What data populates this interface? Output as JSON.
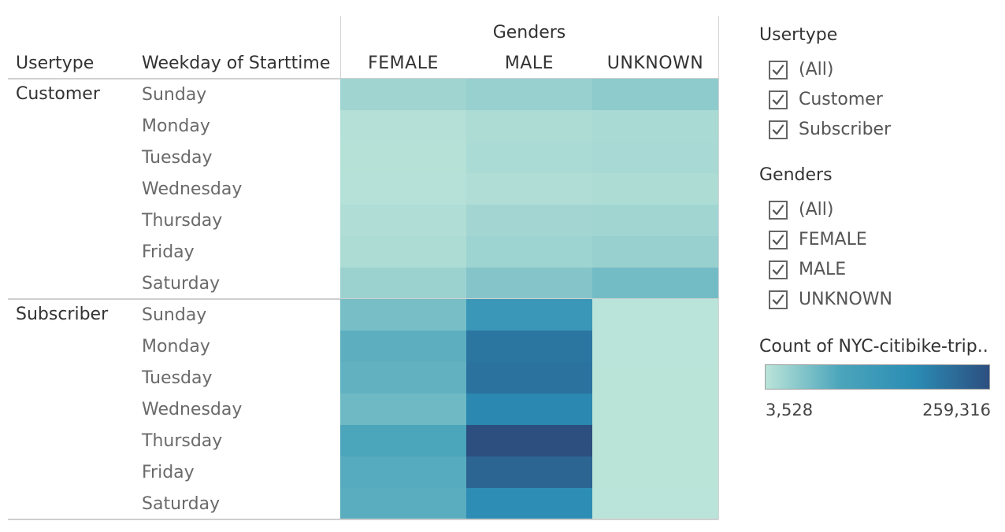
{
  "headers": {
    "usertype": "Usertype",
    "weekday": "Weekday of Starttime",
    "genders": "Genders"
  },
  "chart_data": {
    "type": "heatmap",
    "column_dimension": "Genders",
    "columns": [
      "FEMALE",
      "MALE",
      "UNKNOWN"
    ],
    "row_dimensions": [
      "Usertype",
      "Weekday of Starttime"
    ],
    "groups": [
      {
        "name": "Customer",
        "rows": [
          {
            "day": "Sunday",
            "values": [
              25000,
              30000,
              38000
            ]
          },
          {
            "day": "Monday",
            "values": [
              9000,
              14000,
              17000
            ]
          },
          {
            "day": "Tuesday",
            "values": [
              8000,
              16000,
              18000
            ]
          },
          {
            "day": "Wednesday",
            "values": [
              7000,
              12000,
              14000
            ]
          },
          {
            "day": "Thursday",
            "values": [
              12000,
              22000,
              24000
            ]
          },
          {
            "day": "Friday",
            "values": [
              14000,
              26000,
              30000
            ]
          },
          {
            "day": "Saturday",
            "values": [
              28000,
              45000,
              58000
            ]
          }
        ]
      },
      {
        "name": "Subscriber",
        "rows": [
          {
            "day": "Sunday",
            "values": [
              55000,
              135000,
              4500
            ]
          },
          {
            "day": "Monday",
            "values": [
              75000,
              205000,
              4000
            ]
          },
          {
            "day": "Tuesday",
            "values": [
              72000,
              210000,
              3800
            ]
          },
          {
            "day": "Wednesday",
            "values": [
              62000,
              180000,
              3700
            ]
          },
          {
            "day": "Thursday",
            "values": [
              90000,
              259316,
              3600
            ]
          },
          {
            "day": "Friday",
            "values": [
              80000,
              230000,
              3528
            ]
          },
          {
            "day": "Saturday",
            "values": [
              78000,
              170000,
              4200
            ]
          }
        ]
      }
    ],
    "color_legend": {
      "title": "Count of NYC-citibike-trip..",
      "min_label": "3,528",
      "max_label": "259,316",
      "min": 3528,
      "max": 259316,
      "color_stops": [
        "#bbe4d9",
        "#4ba5bb",
        "#2b8cb4",
        "#2c4f80"
      ]
    }
  },
  "filters": [
    {
      "title": "Usertype",
      "items": [
        {
          "label": "(All)",
          "checked": true
        },
        {
          "label": "Customer",
          "checked": true
        },
        {
          "label": "Subscriber",
          "checked": true
        }
      ]
    },
    {
      "title": "Genders",
      "items": [
        {
          "label": "(All)",
          "checked": true
        },
        {
          "label": "FEMALE",
          "checked": true
        },
        {
          "label": "MALE",
          "checked": true
        },
        {
          "label": "UNKNOWN",
          "checked": true
        }
      ]
    }
  ]
}
